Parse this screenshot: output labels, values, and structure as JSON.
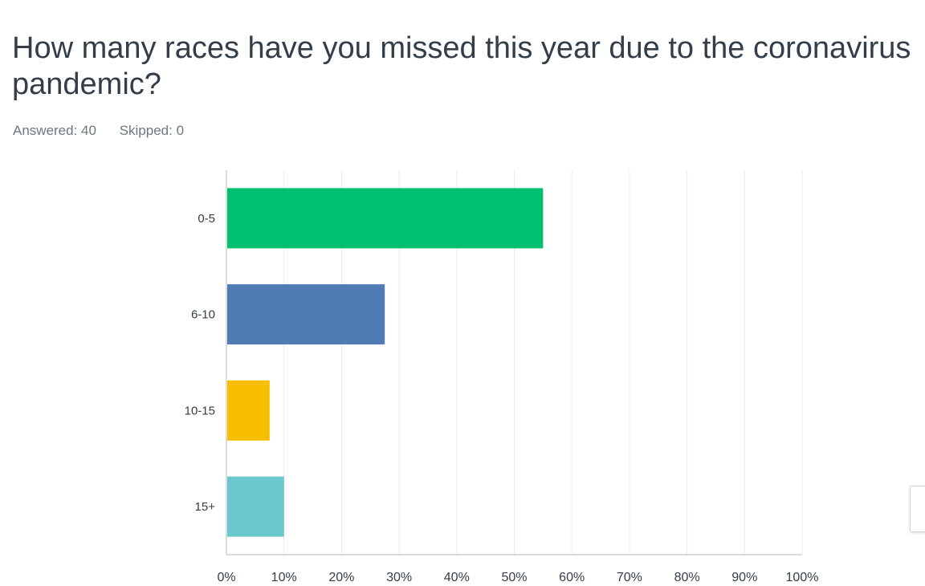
{
  "question": {
    "title": "How many races have you missed this year due to the coronavirus pandemic?",
    "answered_label": "Answered: 40",
    "skipped_label": "Skipped: 0"
  },
  "chart_data": {
    "type": "bar",
    "orientation": "horizontal",
    "title": "",
    "xlabel": "",
    "ylabel": "",
    "categories": [
      "0-5",
      "6-10",
      "10-15",
      "15+"
    ],
    "values": [
      55,
      27.5,
      7.5,
      10
    ],
    "colors": [
      "#00bf6f",
      "#507cb6",
      "#f9be00",
      "#6bc8cd"
    ],
    "xlim": [
      0,
      100
    ],
    "xticks": [
      "0%",
      "10%",
      "20%",
      "30%",
      "40%",
      "50%",
      "60%",
      "70%",
      "80%",
      "90%",
      "100%"
    ],
    "grid": true,
    "legend": "none"
  }
}
